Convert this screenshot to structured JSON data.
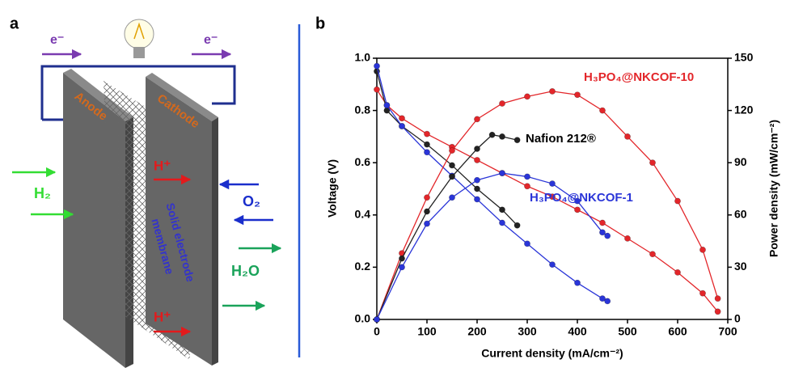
{
  "diagram": {
    "panel_label": "a",
    "electron_left": "e⁻",
    "electron_right": "e⁻",
    "anode": "Anode",
    "cathode": "Cathode",
    "proton_top": "H⁺",
    "proton_bottom": "H⁺",
    "hydrogen": "H₂",
    "oxygen": "O₂",
    "water": "H₂O",
    "membrane_line1": "Solid electrode",
    "membrane_line2": "membrane"
  },
  "chart_data": {
    "type": "line",
    "panel_label": "b",
    "x_label": "Current density (mA/cm⁻²)",
    "y_label": "Voltage (V)",
    "y2_label": "Power density (mW/cm⁻²)",
    "xlim": [
      0,
      700
    ],
    "xticks": [
      0,
      100,
      200,
      300,
      400,
      500,
      600,
      700
    ],
    "ylim": [
      0,
      1
    ],
    "yticks": [
      {
        "value": 0,
        "label": "0.0"
      },
      0.2,
      0.4,
      0.6,
      0.8,
      {
        "value": 1,
        "label": "1.0"
      }
    ],
    "y2lim": [
      0,
      150
    ],
    "y2ticks": [
      0,
      30,
      60,
      90,
      120,
      150
    ],
    "series": [
      {
        "name": "H₃PO₄@NKCOF-10",
        "color": "#e3262a",
        "x": [
          0,
          20,
          50,
          100,
          150,
          200,
          250,
          300,
          350,
          400,
          450,
          500,
          550,
          600,
          650,
          680
        ],
        "values": [
          0.88,
          0.82,
          0.77,
          0.71,
          0.66,
          0.61,
          0.56,
          0.51,
          0.47,
          0.42,
          0.37,
          0.31,
          0.25,
          0.18,
          0.1,
          0.03
        ]
      },
      {
        "name": "Nafion 212®",
        "color": "#222222",
        "x": [
          0,
          20,
          50,
          100,
          150,
          200,
          250,
          280
        ],
        "values": [
          0.95,
          0.8,
          0.74,
          0.67,
          0.59,
          0.5,
          0.42,
          0.36
        ]
      },
      {
        "name": "H₃PO₄@NKCOF-1",
        "color": "#2a35d8",
        "x": [
          0,
          20,
          50,
          100,
          150,
          200,
          250,
          300,
          350,
          400,
          450,
          460
        ],
        "values": [
          0.97,
          0.82,
          0.74,
          0.64,
          0.55,
          0.46,
          0.37,
          0.29,
          0.21,
          0.14,
          0.08,
          0.07
        ]
      },
      {
        "axis": "y2",
        "color": "#e3262a",
        "x": [
          0,
          50,
          100,
          150,
          200,
          250,
          300,
          350,
          400,
          450,
          500,
          550,
          600,
          650,
          680
        ],
        "values": [
          0,
          38,
          70,
          97,
          115,
          124,
          128,
          131,
          129,
          120,
          105,
          90,
          68,
          40,
          12
        ]
      },
      {
        "axis": "y2",
        "color": "#222222",
        "x": [
          0,
          50,
          100,
          150,
          200,
          230,
          250,
          280
        ],
        "values": [
          0,
          35,
          62,
          82,
          98,
          106,
          105,
          103
        ]
      },
      {
        "axis": "y2",
        "color": "#2a35d8",
        "x": [
          0,
          50,
          100,
          150,
          200,
          250,
          300,
          350,
          400,
          450,
          460
        ],
        "values": [
          0,
          30,
          55,
          70,
          80,
          84,
          82,
          78,
          68,
          50,
          48
        ]
      }
    ]
  }
}
